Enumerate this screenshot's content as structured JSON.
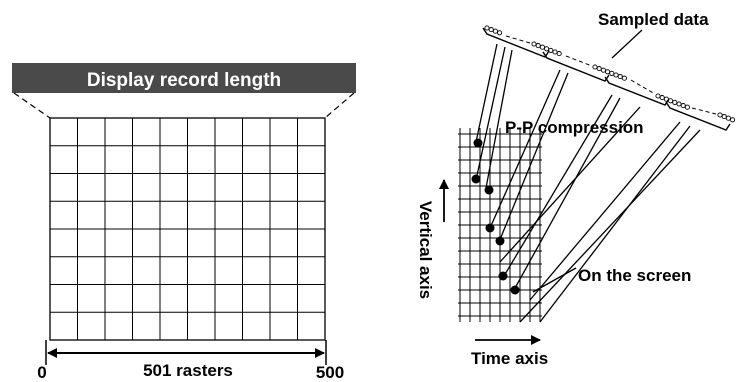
{
  "left_panel": {
    "title_bar": "Display record length",
    "axis_start": "0",
    "axis_end": "500",
    "axis_label": "501 rasters"
  },
  "right_panel": {
    "sampled_data_label": "Sampled data",
    "compression_label": "P-P compression",
    "screen_label": "On the screen",
    "vertical_axis_label": "Vertical axis",
    "time_axis_label": "Time axis"
  },
  "colors": {
    "title_bar_fill": "#4a4a4a",
    "title_bar_text": "#ffffff",
    "ink": "#000000"
  }
}
